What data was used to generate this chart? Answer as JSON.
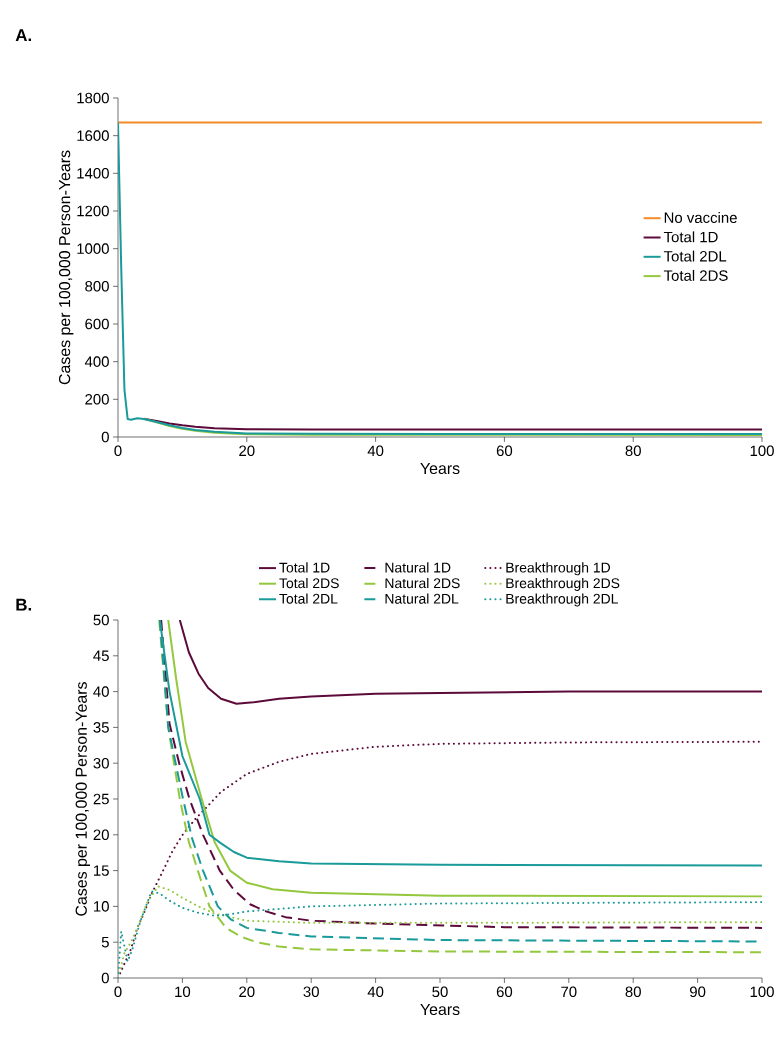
{
  "chart_data": [
    {
      "type": "line",
      "title": "A.",
      "xlabel": "Years",
      "ylabel": "Cases per 100,000 Person-Years",
      "xlim": [
        0,
        100
      ],
      "ylim": [
        0,
        1800
      ],
      "xticks": [
        0,
        20,
        40,
        60,
        80,
        100
      ],
      "yticks": [
        0,
        200,
        400,
        600,
        800,
        1000,
        1200,
        1400,
        1600,
        1800
      ],
      "legend": "right",
      "grid": false,
      "series": [
        {
          "name": "No vaccine",
          "color": "#f28c28",
          "line_style": "solid",
          "x": [
            0,
            100
          ],
          "values": [
            1670,
            1670
          ]
        },
        {
          "name": "Total 1D",
          "color": "#5c0a3a",
          "line_style": "solid",
          "x": [
            4,
            6,
            8,
            10,
            12,
            15,
            20,
            30,
            50,
            100
          ],
          "values": [
            97,
            85,
            72,
            62,
            54,
            47,
            41,
            40,
            40,
            40
          ]
        },
        {
          "name": "Total 2DL",
          "color": "#1a9a9a",
          "line_style": "solid",
          "x": [
            0,
            0.5,
            1,
            1.5,
            2,
            3,
            4,
            6,
            8,
            10,
            12,
            15,
            20,
            30,
            50,
            100
          ],
          "values": [
            1670,
            900,
            250,
            95,
            92,
            100,
            96,
            80,
            62,
            48,
            37,
            28,
            19,
            17,
            16,
            16
          ]
        },
        {
          "name": "Total 2DS",
          "color": "#93c83e",
          "line_style": "solid",
          "x": [
            4,
            6,
            8,
            10,
            12,
            15,
            20,
            30,
            50,
            100
          ],
          "values": [
            96,
            78,
            58,
            44,
            33,
            22,
            15,
            12,
            12,
            11
          ]
        }
      ]
    },
    {
      "type": "line",
      "title": "B.",
      "xlabel": "Years",
      "ylabel": "Cases per 100,000 Person-Years",
      "xlim": [
        0,
        100
      ],
      "ylim": [
        0,
        50
      ],
      "xticks": [
        0,
        10,
        20,
        30,
        40,
        50,
        60,
        70,
        80,
        90,
        100
      ],
      "yticks": [
        0,
        5,
        10,
        15,
        20,
        25,
        30,
        35,
        40,
        45,
        50
      ],
      "legend": "top",
      "grid": false,
      "series": [
        {
          "name": "Total 1D",
          "color": "#5c0a3a",
          "line_style": "solid",
          "x": [
            9.6,
            11,
            12.5,
            14,
            16,
            18.4,
            21,
            25,
            30,
            40,
            50,
            70,
            100
          ],
          "values": [
            50,
            45.5,
            42.5,
            40.5,
            39,
            38.3,
            38.5,
            39,
            39.3,
            39.7,
            39.8,
            40,
            40
          ]
        },
        {
          "name": "Natural 1D",
          "color": "#5c0a3a",
          "line_style": "dashed",
          "x": [
            6.7,
            8,
            9.5,
            11.1,
            13.2,
            15.8,
            18,
            20.5,
            23,
            26,
            30,
            40,
            60,
            100
          ],
          "values": [
            50,
            35.5,
            30,
            25,
            20,
            15,
            12.3,
            10.3,
            9.3,
            8.5,
            8,
            7.6,
            7.1,
            7
          ]
        },
        {
          "name": "Breakthrough 1D",
          "color": "#5c0a3a",
          "line_style": "dotted",
          "x": [
            0,
            1,
            2,
            3,
            4,
            5.4,
            7,
            8.5,
            10.1,
            12,
            13.7,
            16,
            20,
            25,
            30,
            40,
            50,
            70,
            100
          ],
          "values": [
            0,
            2,
            4,
            7,
            9,
            12.1,
            15,
            17.8,
            20.1,
            22.2,
            23.8,
            26,
            28.5,
            30.2,
            31.3,
            32.3,
            32.7,
            32.9,
            33
          ]
        },
        {
          "name": "Total 2DS",
          "color": "#93c83e",
          "line_style": "solid",
          "x": [
            7.8,
            9,
            10.5,
            13,
            15,
            17.4,
            20,
            24,
            30,
            50,
            100
          ],
          "values": [
            50,
            42,
            33,
            25,
            19,
            15,
            13.3,
            12.4,
            11.9,
            11.5,
            11.4
          ]
        },
        {
          "name": "Natural 2DS",
          "color": "#93c83e",
          "line_style": "dashed",
          "x": [
            6.4,
            7.8,
            9.6,
            11,
            12.4,
            14.2,
            16.8,
            19,
            21.5,
            25,
            30,
            50,
            100
          ],
          "values": [
            50,
            35,
            25,
            19,
            15,
            10,
            7,
            5.8,
            5,
            4.4,
            4,
            3.7,
            3.6
          ]
        },
        {
          "name": "Breakthrough 2DS",
          "color": "#93c83e",
          "line_style": "dotted",
          "x": [
            0,
            1,
            2,
            3,
            4.5,
            6.2,
            8,
            10,
            12.5,
            15,
            20,
            30,
            50,
            100
          ],
          "values": [
            0,
            3.5,
            5,
            7,
            10.5,
            12.8,
            12.3,
            11.2,
            10,
            9,
            8,
            7.7,
            7.7,
            7.8
          ]
        },
        {
          "name": "Total 2DL",
          "color": "#1a9a9a",
          "line_style": "solid",
          "x": [
            6.5,
            8,
            10,
            12.7,
            14.2,
            16,
            18,
            20,
            25,
            30,
            50,
            100
          ],
          "values": [
            50,
            40,
            31,
            25,
            20,
            18.8,
            17.6,
            16.8,
            16.3,
            16,
            15.8,
            15.7
          ]
        },
        {
          "name": "Natural 2DL",
          "color": "#1a9a9a",
          "line_style": "dashed",
          "x": [
            6.5,
            7.8,
            10.1,
            11.5,
            13.2,
            15.5,
            17.5,
            20,
            25,
            30,
            50,
            100
          ],
          "values": [
            50,
            35,
            25,
            19.5,
            15,
            10,
            8.2,
            7,
            6.3,
            5.8,
            5.3,
            5.1
          ]
        },
        {
          "name": "Breakthrough 2DL",
          "color": "#1a9a9a",
          "line_style": "dotted",
          "x": [
            0,
            0.5,
            1.5,
            2.3,
            3.5,
            5.2,
            6.5,
            8,
            10,
            12.5,
            15,
            17.5,
            20,
            30,
            50,
            100
          ],
          "values": [
            0,
            6.5,
            2.3,
            4.2,
            8,
            12.1,
            11.8,
            10.8,
            9.8,
            9.1,
            8.7,
            8.9,
            9.3,
            10,
            10.4,
            10.6
          ]
        }
      ]
    }
  ]
}
